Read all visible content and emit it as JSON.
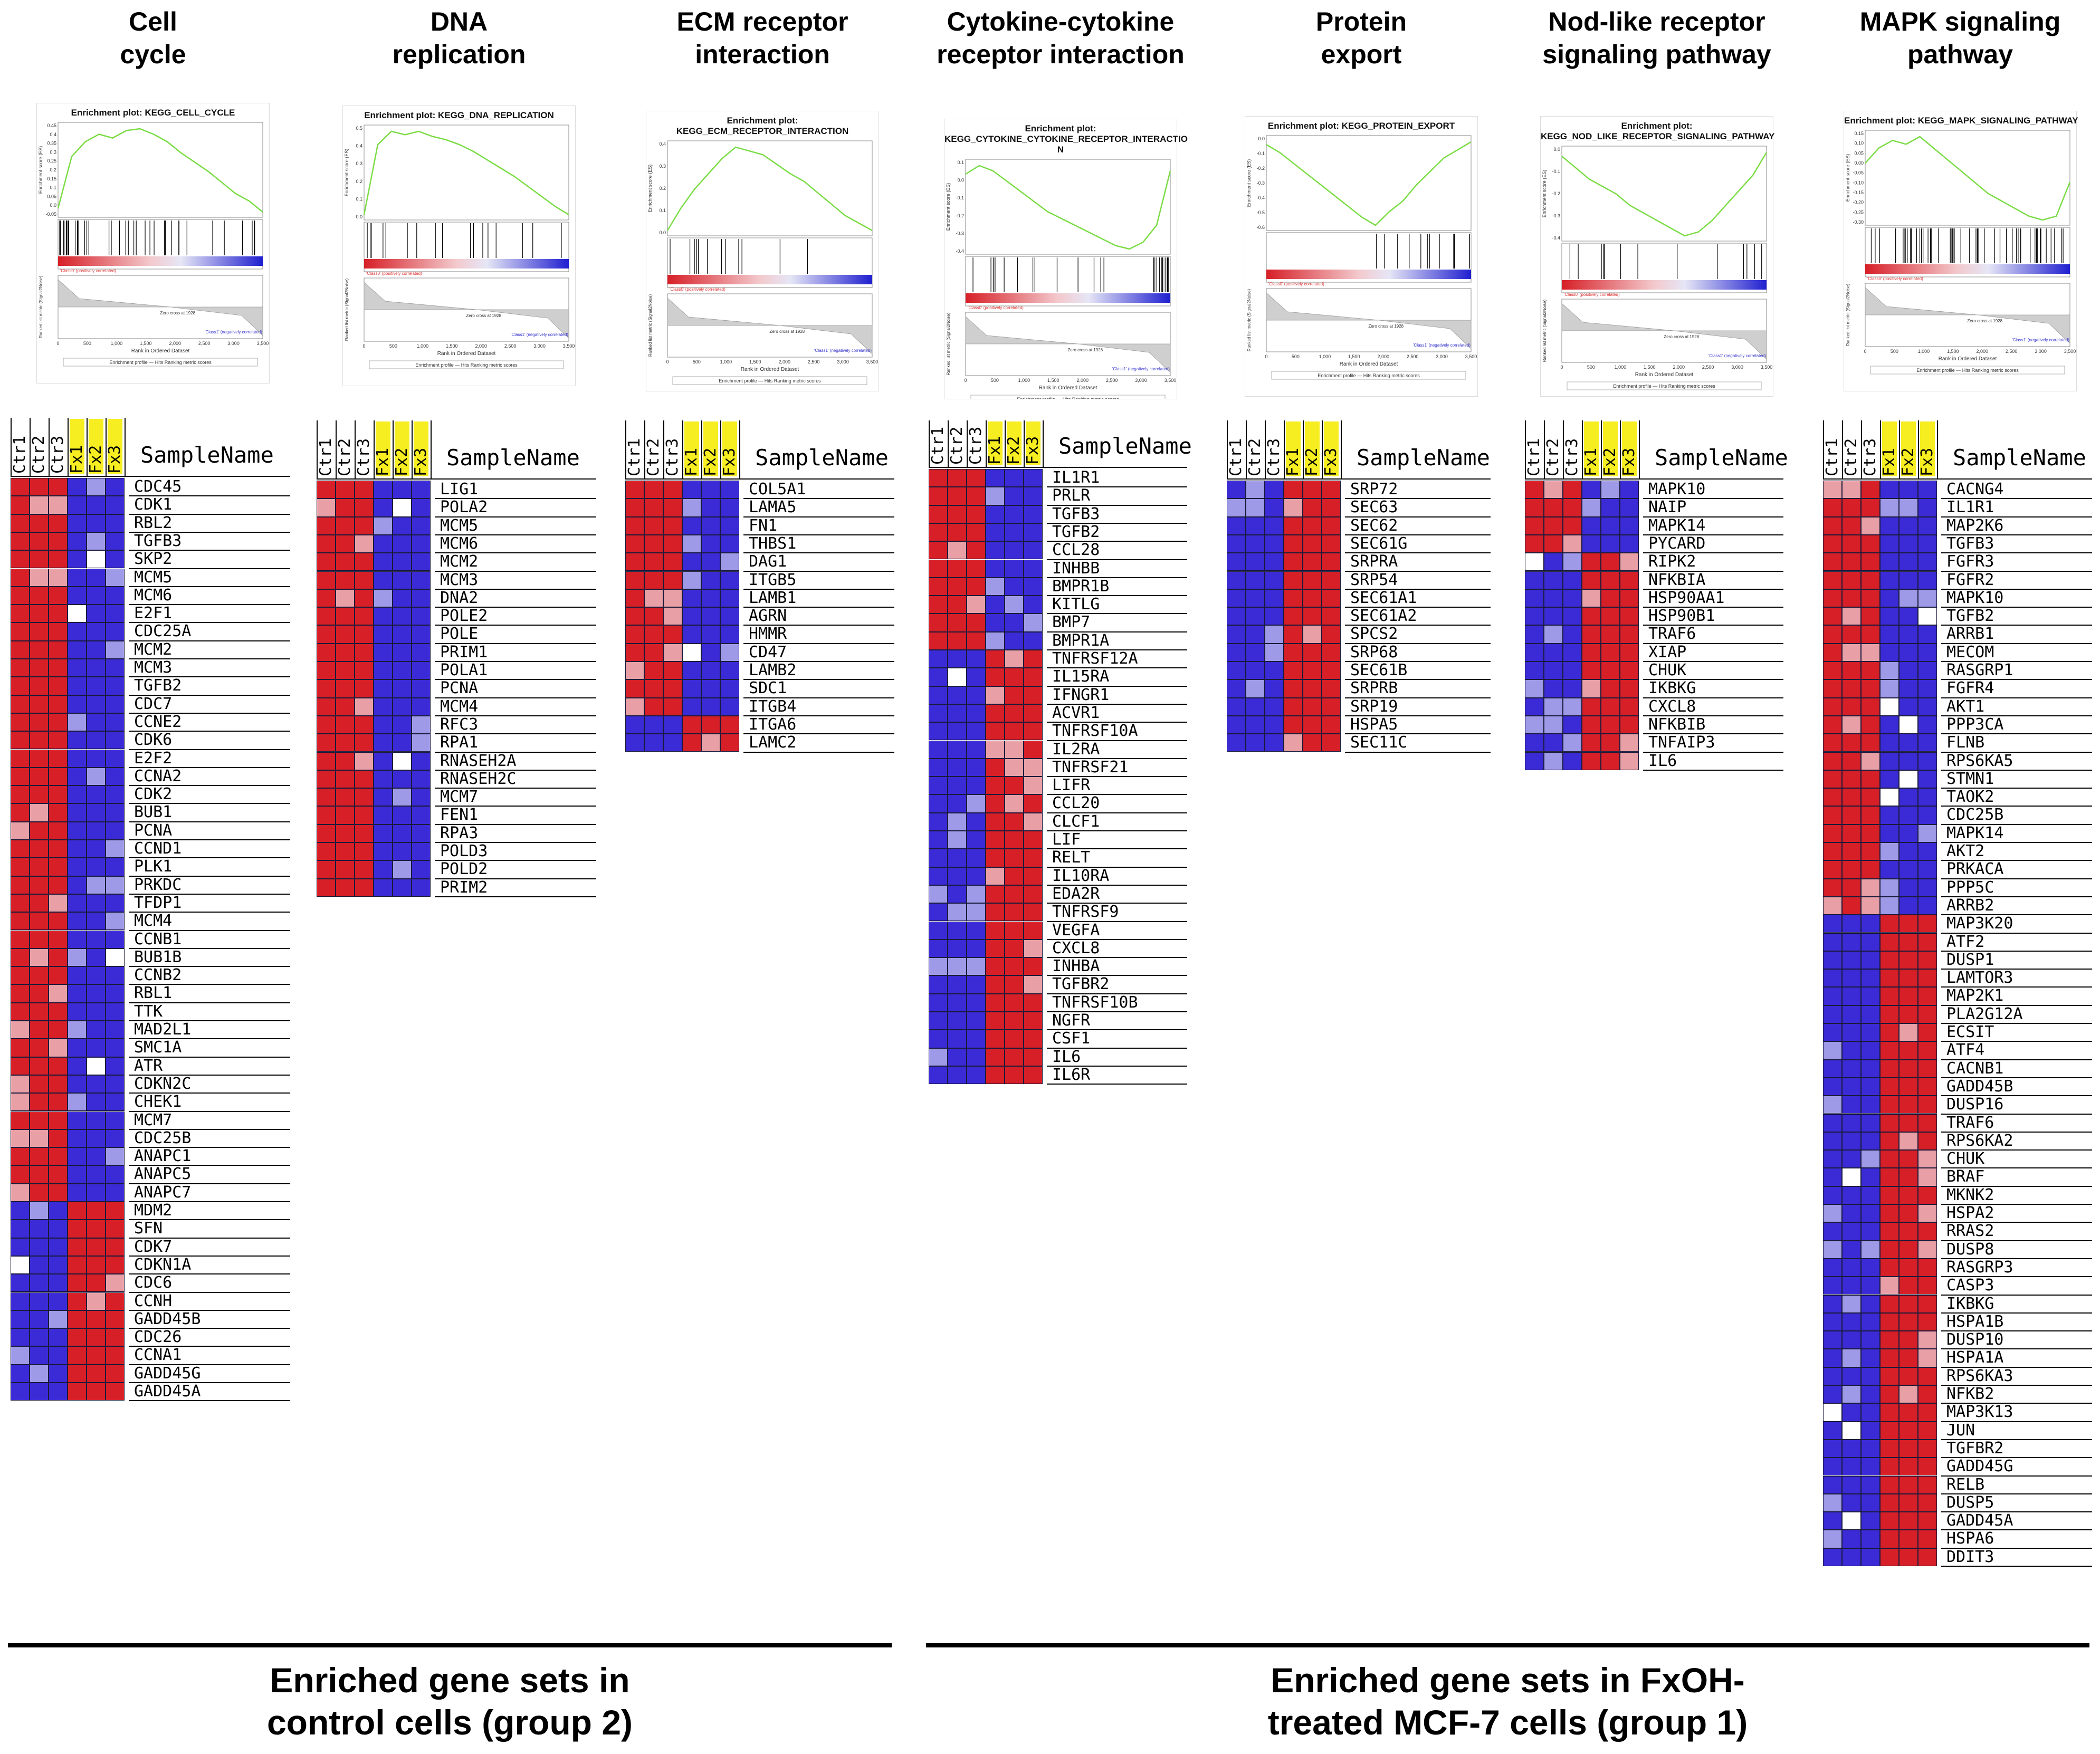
{
  "colors": {
    "red": "#d71f27",
    "blue": "#3b2bd6",
    "pink": "#e8a0a6",
    "lightblue": "#9f9ae8",
    "white": "#ffffff",
    "es_line": "#7bdc45",
    "fx_bg": "#f6ee21"
  },
  "heatmap_columns": [
    "Ctr1",
    "Ctr2",
    "Ctr3",
    "Fx1",
    "Fx2",
    "Fx3"
  ],
  "sample_label": "SampleName",
  "gsea_common": {
    "ylabel": "Enrichment score (ES)",
    "rank_ylabel": "Ranked list metric (Signal2Noise)",
    "xlabel": "Rank in Ordered Dataset",
    "xticks": [
      "0",
      "500",
      "1,000",
      "1,500",
      "2,000",
      "2,500",
      "3,000",
      "3,500"
    ],
    "pos_label": "'Class0' (positively correlated)",
    "neg_label": "'Class1' (negatively correlated)",
    "zero_label": "Zero cross at 1928",
    "legend": "Enrichment profile — Hits   Ranking metric scores"
  },
  "groups": [
    {
      "label_lines": [
        "Enriched gene sets in",
        "control cells (group 2)"
      ]
    },
    {
      "label_lines": [
        "Enriched gene sets in FxOH-",
        "treated MCF-7 cells (group 1)"
      ]
    }
  ],
  "chart_data": [
    {
      "type": "heatmap",
      "title_lines": [
        "Cell",
        "cycle"
      ],
      "gsea_title": [
        "Enrichment plot: KEGG_CELL_CYCLE"
      ],
      "es_yticks": [
        "0.45",
        "0.4",
        "0.35",
        "0.3",
        "0.25",
        "0.2",
        "0.15",
        "0.1",
        "0.05",
        "0.0",
        "-0.05"
      ],
      "es_curve": [
        0,
        0.28,
        0.36,
        0.4,
        0.38,
        0.42,
        0.43,
        0.4,
        0.36,
        0.3,
        0.25,
        0.2,
        0.14,
        0.08,
        0.04,
        -0.02
      ],
      "genes": [
        "CDC45",
        "CDK1",
        "RBL2",
        "TGFB3",
        "SKP2",
        "MCM5",
        "MCM6",
        "E2F1",
        "CDC25A",
        "MCM2",
        "MCM3",
        "TGFB2",
        "CDC7",
        "CCNE2",
        "CDK6",
        "E2F2",
        "CCNA2",
        "CDK2",
        "BUB1",
        "PCNA",
        "CCND1",
        "PLK1",
        "PRKDC",
        "TFDP1",
        "MCM4",
        "CCNB1",
        "BUB1B",
        "CCNB2",
        "RBL1",
        "TTK",
        "MAD2L1",
        "SMC1A",
        "ATR",
        "CDKN2C",
        "CHEK1",
        "MCM7",
        "CDC25B",
        "ANAPC1",
        "ANAPC5",
        "ANAPC7",
        "MDM2",
        "SFN",
        "CDK7",
        "CDKN1A",
        "CDC6",
        "CCNH",
        "GADD45B",
        "CDC26",
        "CCNA1",
        "GADD45G",
        "GADD45A"
      ],
      "up_in_control": 40
    },
    {
      "type": "heatmap",
      "title_lines": [
        "DNA",
        "replication"
      ],
      "gsea_title": [
        "Enrichment plot: KEGG_DNA_REPLICATION"
      ],
      "es_yticks": [
        "0.5",
        "0.4",
        "0.3",
        "0.2",
        "0.1",
        "0.0"
      ],
      "es_curve": [
        0,
        0.42,
        0.5,
        0.48,
        0.5,
        0.47,
        0.45,
        0.42,
        0.38,
        0.33,
        0.28,
        0.23,
        0.17,
        0.11,
        0.05,
        0.0
      ],
      "genes": [
        "LIG1",
        "POLA2",
        "MCM5",
        "MCM6",
        "MCM2",
        "MCM3",
        "DNA2",
        "POLE2",
        "POLE",
        "PRIM1",
        "POLA1",
        "PCNA",
        "MCM4",
        "RFC3",
        "RPA1",
        "RNASEH2A",
        "RNASEH2C",
        "MCM7",
        "FEN1",
        "RPA3",
        "POLD3",
        "POLD2",
        "PRIM2"
      ],
      "up_in_control": 23
    },
    {
      "type": "heatmap",
      "title_lines": [
        "ECM receptor",
        "interaction"
      ],
      "gsea_title": [
        "Enrichment plot:",
        "KEGG_ECM_RECEPTOR_INTERACTION"
      ],
      "es_yticks": [
        "0.4",
        "0.3",
        "0.2",
        "0.1",
        "0.0"
      ],
      "es_curve": [
        0,
        0.12,
        0.22,
        0.3,
        0.38,
        0.44,
        0.42,
        0.4,
        0.35,
        0.3,
        0.26,
        0.2,
        0.14,
        0.08,
        0.04,
        0.0
      ],
      "genes": [
        "COL5A1",
        "LAMA5",
        "FN1",
        "THBS1",
        "DAG1",
        "ITGB5",
        "LAMB1",
        "AGRN",
        "HMMR",
        "CD47",
        "LAMB2",
        "SDC1",
        "ITGB4",
        "ITGA6",
        "LAMC2"
      ],
      "up_in_control": 13
    },
    {
      "type": "heatmap",
      "title_lines": [
        "Cytokine-cytokine",
        "receptor interaction"
      ],
      "gsea_title": [
        "Enrichment plot:",
        "KEGG_CYTOKINE_CYTOKINE_RECEPTOR_INTERACTIO",
        "N"
      ],
      "es_yticks": [
        "0.1",
        "0.0",
        "-0.1",
        "-0.2",
        "-0.3",
        "-0.4"
      ],
      "es_curve": [
        0,
        0.05,
        0.02,
        -0.04,
        -0.1,
        -0.16,
        -0.22,
        -0.26,
        -0.3,
        -0.34,
        -0.38,
        -0.42,
        -0.44,
        -0.4,
        -0.3,
        0.02
      ],
      "genes": [
        "IL1R1",
        "PRLR",
        "TGFB3",
        "TGFB2",
        "CCL28",
        "INHBB",
        "BMPR1B",
        "KITLG",
        "BMP7",
        "BMPR1A",
        "TNFRSF12A",
        "IL15RA",
        "IFNGR1",
        "ACVR1",
        "TNFRSF10A",
        "IL2RA",
        "TNFRSF21",
        "LIFR",
        "CCL20",
        "CLCF1",
        "LIF",
        "RELT",
        "IL10RA",
        "EDA2R",
        "TNFRSF9",
        "VEGFA",
        "CXCL8",
        "INHBA",
        "TGFBR2",
        "TNFRSF10B",
        "NGFR",
        "CSF1",
        "IL6",
        "IL6R"
      ],
      "up_in_control": 10
    },
    {
      "type": "heatmap",
      "title_lines": [
        "Protein",
        "export"
      ],
      "gsea_title": [
        "Enrichment plot: KEGG_PROTEIN_EXPORT"
      ],
      "es_yticks": [
        "0.0",
        "-0.1",
        "-0.2",
        "-0.3",
        "-0.4",
        "-0.5",
        "-0.6"
      ],
      "es_curve": [
        0,
        -0.06,
        -0.14,
        -0.22,
        -0.3,
        -0.38,
        -0.46,
        -0.54,
        -0.6,
        -0.5,
        -0.42,
        -0.3,
        -0.2,
        -0.1,
        -0.04,
        0.02
      ],
      "genes": [
        "SRP72",
        "SEC63",
        "SEC62",
        "SEC61G",
        "SRPRA",
        "SRP54",
        "SEC61A1",
        "SEC61A2",
        "SPCS2",
        "SRP68",
        "SEC61B",
        "SRPRB",
        "SRP19",
        "HSPA5",
        "SEC11C"
      ],
      "up_in_control": 0
    },
    {
      "type": "heatmap",
      "title_lines": [
        "Nod-like receptor",
        "signaling pathway"
      ],
      "gsea_title": [
        "Enrichment plot:",
        "KEGG_NOD_LIKE_RECEPTOR_SIGNALING_PATHWAY"
      ],
      "es_yticks": [
        "0.0",
        "-0.1",
        "-0.2",
        "-0.3",
        "-0.4"
      ],
      "es_curve": [
        0,
        -0.06,
        -0.12,
        -0.16,
        -0.2,
        -0.26,
        -0.3,
        -0.34,
        -0.38,
        -0.42,
        -0.4,
        -0.34,
        -0.26,
        -0.18,
        -0.1,
        0.02
      ],
      "genes": [
        "MAPK10",
        "NAIP",
        "MAPK14",
        "PYCARD",
        "RIPK2",
        "NFKBIA",
        "HSP90AA1",
        "HSP90B1",
        "TRAF6",
        "XIAP",
        "CHUK",
        "IKBKG",
        "CXCL8",
        "NFKBIB",
        "TNFAIP3",
        "IL6"
      ],
      "up_in_control": 4
    },
    {
      "type": "heatmap",
      "title_lines": [
        "MAPK signaling",
        "pathway"
      ],
      "gsea_title": [
        "Enrichment plot: KEGG_MAPK_SIGNALING_PATHWAY"
      ],
      "es_yticks": [
        "0.15",
        "0.10",
        "0.05",
        "0.00",
        "-0.05",
        "-0.10",
        "-0.15",
        "-0.20",
        "-0.25",
        "-0.30"
      ],
      "es_curve": [
        0,
        0.08,
        0.12,
        0.1,
        0.14,
        0.08,
        0.02,
        -0.04,
        -0.1,
        -0.16,
        -0.2,
        -0.24,
        -0.28,
        -0.3,
        -0.28,
        -0.1
      ],
      "genes": [
        "CACNG4",
        "IL1R1",
        "MAP2K6",
        "TGFB3",
        "FGFR3",
        "FGFR2",
        "MAPK10",
        "TGFB2",
        "ARRB1",
        "MECOM",
        "RASGRP1",
        "FGFR4",
        "AKT1",
        "PPP3CA",
        "FLNB",
        "RPS6KA5",
        "STMN1",
        "TAOK2",
        "CDC25B",
        "MAPK14",
        "AKT2",
        "PRKACA",
        "PPP5C",
        "ARRB2",
        "MAP3K20",
        "ATF2",
        "DUSP1",
        "LAMTOR3",
        "MAP2K1",
        "PLA2G12A",
        "ECSIT",
        "ATF4",
        "CACNB1",
        "GADD45B",
        "DUSP16",
        "TRAF6",
        "RPS6KA2",
        "CHUK",
        "BRAF",
        "MKNK2",
        "HSPA2",
        "RRAS2",
        "DUSP8",
        "RASGRP3",
        "CASP3",
        "IKBKG",
        "HSPA1B",
        "DUSP10",
        "HSPA1A",
        "RPS6KA3",
        "NFKB2",
        "MAP3K13",
        "JUN",
        "TGFBR2",
        "GADD45G",
        "RELB",
        "DUSP5",
        "GADD45A",
        "HSPA6",
        "DDIT3"
      ],
      "up_in_control": 24
    }
  ]
}
